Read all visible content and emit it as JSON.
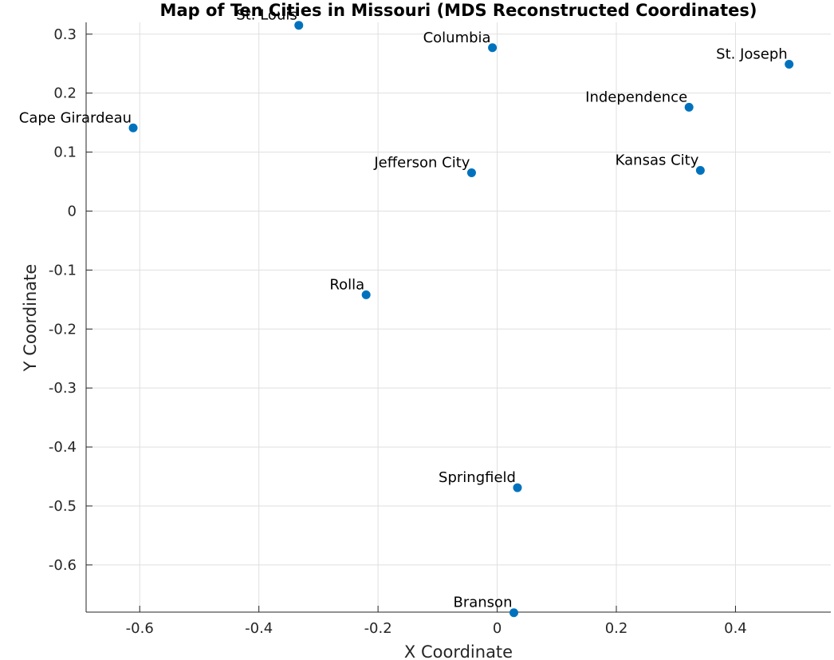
{
  "chart_data": {
    "type": "scatter",
    "title": "Map of Ten Cities in Missouri (MDS Reconstructed Coordinates)",
    "xlabel": "X Coordinate",
    "ylabel": "Y Coordinate",
    "xlim": [
      -0.69,
      0.56
    ],
    "ylim": [
      -0.68,
      0.32
    ],
    "xticks": [
      -0.6,
      -0.4,
      -0.2,
      0,
      0.2,
      0.4
    ],
    "xtick_labels": [
      "-0.6",
      "-0.4",
      "-0.2",
      "0",
      "0.2",
      "0.4"
    ],
    "yticks": [
      0.3,
      0.2,
      0.1,
      0,
      -0.1,
      -0.2,
      -0.3,
      -0.4,
      -0.5,
      -0.6
    ],
    "ytick_labels": [
      "0.3",
      "0.2",
      "0.1",
      "0",
      "-0.1",
      "-0.2",
      "-0.3",
      "-0.4",
      "-0.5",
      "-0.6"
    ],
    "grid": true,
    "marker_color": "#0072BD",
    "points": [
      {
        "label": "St. Louis",
        "x": -0.333,
        "y": 0.315
      },
      {
        "label": "Columbia",
        "x": -0.008,
        "y": 0.277
      },
      {
        "label": "St. Joseph",
        "x": 0.49,
        "y": 0.249
      },
      {
        "label": "Independence",
        "x": 0.322,
        "y": 0.176
      },
      {
        "label": "Cape Girardeau",
        "x": -0.611,
        "y": 0.141
      },
      {
        "label": "Jefferson City",
        "x": -0.043,
        "y": 0.065
      },
      {
        "label": "Kansas City",
        "x": 0.341,
        "y": 0.069
      },
      {
        "label": "Rolla",
        "x": -0.22,
        "y": -0.142
      },
      {
        "label": "Springfield",
        "x": 0.034,
        "y": -0.469
      },
      {
        "label": "Branson",
        "x": 0.028,
        "y": -0.681
      }
    ]
  }
}
